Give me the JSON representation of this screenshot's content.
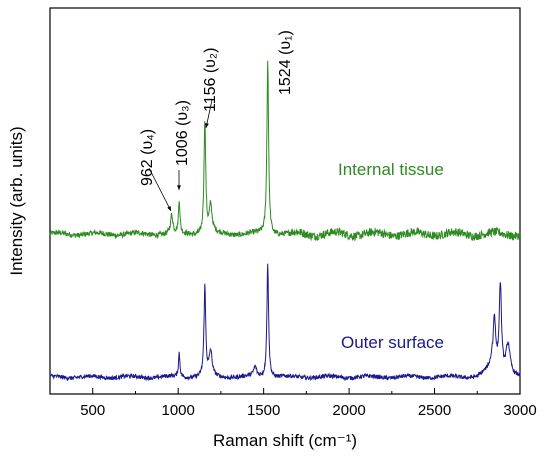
{
  "chart_data": {
    "type": "line",
    "xlabel": "Raman shift (cm⁻¹)",
    "ylabel": "Intensity (arb. units)",
    "xlim": [
      250,
      3000
    ],
    "x_ticks": [
      500,
      1000,
      1500,
      2000,
      2500,
      3000
    ],
    "y_ticks_shown": false,
    "grid": false,
    "series": [
      {
        "name": "Internal tissue",
        "color": "#2e8b22",
        "baseline": 0.0,
        "noise": 0.035,
        "peaks": [
          {
            "x": 962,
            "height": 0.12,
            "width": 8
          },
          {
            "x": 1006,
            "height": 0.22,
            "width": 5
          },
          {
            "x": 1156,
            "height": 0.75,
            "width": 6
          },
          {
            "x": 1190,
            "height": 0.18,
            "width": 10
          },
          {
            "x": 1524,
            "height": 1.15,
            "width": 6
          }
        ]
      },
      {
        "name": "Outer surface",
        "color": "#1a1a8c",
        "baseline": 0.0,
        "noise": 0.025,
        "peaks": [
          {
            "x": 1006,
            "height": 0.15,
            "width": 5
          },
          {
            "x": 1156,
            "height": 0.55,
            "width": 6
          },
          {
            "x": 1190,
            "height": 0.15,
            "width": 10
          },
          {
            "x": 1450,
            "height": 0.06,
            "width": 10
          },
          {
            "x": 1524,
            "height": 0.7,
            "width": 6
          },
          {
            "x": 2850,
            "height": 0.35,
            "width": 10
          },
          {
            "x": 2885,
            "height": 0.55,
            "width": 8
          },
          {
            "x": 2930,
            "height": 0.2,
            "width": 15
          }
        ]
      }
    ],
    "annotations": [
      {
        "text": "962 (υ₄)",
        "x": 962
      },
      {
        "text": "1006 (υ₃)",
        "x": 1006
      },
      {
        "text": "1156 (υ₂)",
        "x": 1156
      },
      {
        "text": "1524 (υ₁)",
        "x": 1524
      }
    ]
  }
}
